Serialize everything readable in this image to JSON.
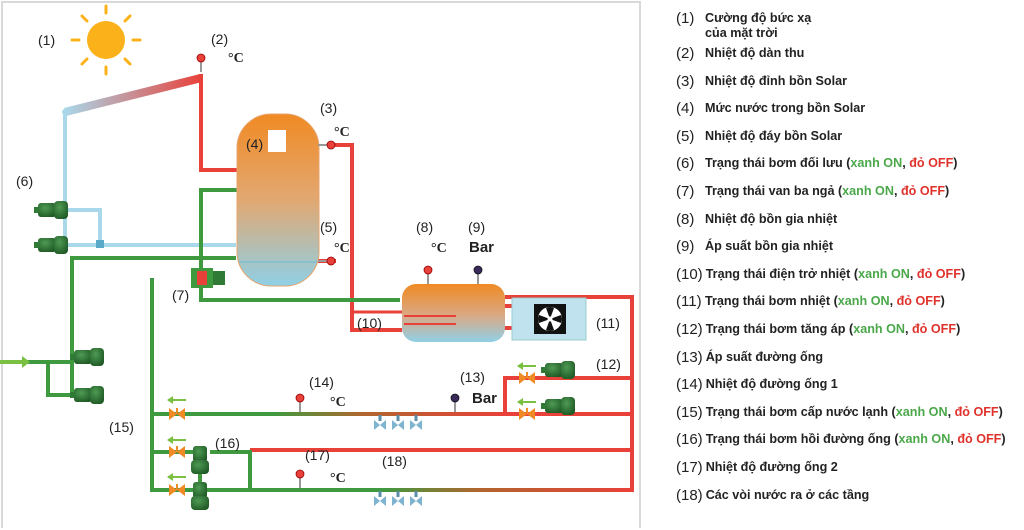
{
  "diagram": {
    "labels": {
      "l1": "(1)",
      "l2": "(2)",
      "l3": "(3)",
      "l4": "(4)",
      "l5": "(5)",
      "l6": "(6)",
      "l7": "(7)",
      "l8": "(8)",
      "l9": "(9)",
      "l10": "(10)",
      "l11": "(11)",
      "l12": "(12)",
      "l13": "(13)",
      "l14": "(14)",
      "l15": "(15)",
      "l16": "(16)",
      "l17": "(17)",
      "l18": "(18)"
    },
    "units": {
      "celsius": "°C",
      "bar": "Bar"
    },
    "icons": {
      "sun": "sun-icon",
      "fan": "fan-icon",
      "pump": "pump-icon",
      "valve": "valve-icon",
      "faucet": "faucet-icon"
    },
    "colors": {
      "hot": "#e8413a",
      "cold": "#a9d8ea",
      "green": "#3f9a3f",
      "pump": "#2f7a35",
      "valve": "#f08a24",
      "frame": "#d9d9d9"
    }
  },
  "legend": {
    "items": [
      {
        "num": "(1)",
        "text": "Cường độ bức xạ\ncủa mặt trời"
      },
      {
        "num": "(2)",
        "text": "Nhiệt độ dàn thu"
      },
      {
        "num": "(3)",
        "text": "Nhiệt độ đỉnh bồn Solar"
      },
      {
        "num": "(4)",
        "text": "Mức nước trong bồn Solar"
      },
      {
        "num": "(5)",
        "text": "Nhiệt độ đáy bồn Solar"
      },
      {
        "num": "(6)",
        "text": "Trạng thái bơm đối lưu (",
        "on": "xanh ON",
        "sep": ", ",
        "off": "đỏ OFF",
        "end": ")"
      },
      {
        "num": "(7)",
        "text": "Trạng thái van ba ngả (",
        "on": "xanh ON",
        "sep": ", ",
        "off": "đỏ OFF",
        "end": ")"
      },
      {
        "num": "(8)",
        "text": "Nhiệt độ bồn gia nhiệt"
      },
      {
        "num": "(9)",
        "text": "Áp suất bồn gia nhiệt"
      },
      {
        "num": "(10)",
        "text": "Trạng thái điện trở nhiệt (",
        "on": "xanh ON",
        "sep": ", ",
        "off": "đỏ OFF",
        "end": ")"
      },
      {
        "num": "(11)",
        "text": "Trạng thái bơm nhiệt (",
        "on": "xanh ON",
        "sep": ", ",
        "off": "đỏ OFF",
        "end": ")"
      },
      {
        "num": "(12)",
        "text": "Trạng thái bơm tăng áp (",
        "on": "xanh ON",
        "sep": ", ",
        "off": "đỏ OFF",
        "end": ")"
      },
      {
        "num": "(13)",
        "text": "Áp suất đường ống"
      },
      {
        "num": "(14)",
        "text": "Nhiệt độ đường ống 1"
      },
      {
        "num": "(15)",
        "text": "Trạng thái bơm cấp nước lạnh (",
        "on": "xanh ON",
        "sep": ", ",
        "off": "đỏ OFF",
        "end": ")"
      },
      {
        "num": "(16)",
        "text": "Trạng thái bơm hồi đường ống (",
        "on": "xanh ON",
        "sep": ", ",
        "off": "đỏ OFF",
        "end": ")"
      },
      {
        "num": "(17)",
        "text": "Nhiệt độ đường ống 2"
      },
      {
        "num": "(18)",
        "text": "Các vòi nước ra ở các tầng"
      }
    ]
  }
}
